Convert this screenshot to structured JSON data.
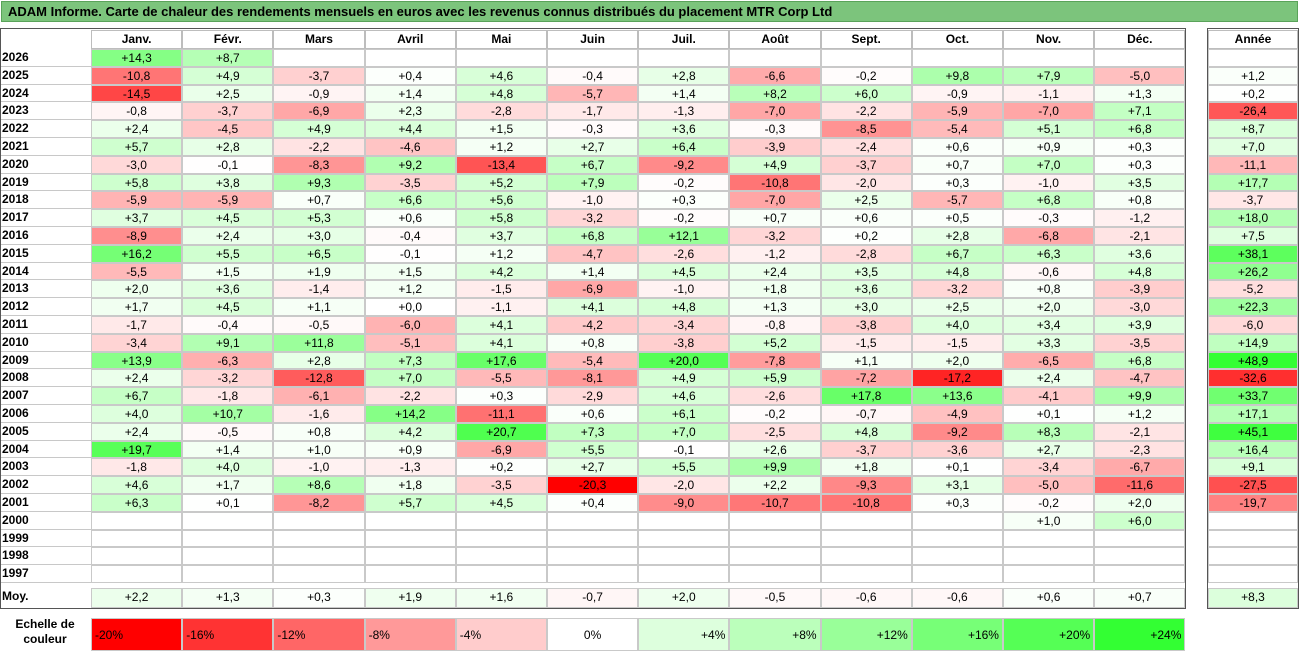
{
  "title": "ADAM Informe. Carte de chaleur des rendements mensuels en euros avec les revenus connus distribués du placement MTR Corp Ltd",
  "labels": {
    "months": [
      "Janv.",
      "Févr.",
      "Mars",
      "Avril",
      "Mai",
      "Juin",
      "Juil.",
      "Août",
      "Sept.",
      "Oct.",
      "Nov.",
      "Déc."
    ],
    "year_col": "Année",
    "avg_row": "Moy.",
    "scale_label": "Echelle de couleur"
  },
  "colors": {
    "title_bg": "#7cc47c",
    "max_red": "#ff0000",
    "max_green": "#33ff33",
    "neutral": "#ffffff"
  },
  "scale": [
    "-20%",
    "-16%",
    "-12%",
    "-8%",
    "-4%",
    "0%",
    "+4%",
    "+8%",
    "+12%",
    "+16%",
    "+20%",
    "+24%"
  ],
  "chart_data": {
    "type": "heatmap",
    "x": [
      "Janv.",
      "Févr.",
      "Mars",
      "Avril",
      "Mai",
      "Juin",
      "Juil.",
      "Août",
      "Sept.",
      "Oct.",
      "Nov.",
      "Déc."
    ],
    "y": [
      "2026",
      "2025",
      "2024",
      "2023",
      "2022",
      "2021",
      "2020",
      "2019",
      "2018",
      "2017",
      "2016",
      "2015",
      "2014",
      "2013",
      "2012",
      "2011",
      "2010",
      "2009",
      "2008",
      "2007",
      "2006",
      "2005",
      "2004",
      "2003",
      "2002",
      "2001",
      "2000",
      "1999",
      "1998",
      "1997"
    ],
    "values": [
      [
        "+14,3",
        "+8,7",
        "",
        "",
        "",
        "",
        "",
        "",
        "",
        "",
        "",
        ""
      ],
      [
        "-10,8",
        "+4,9",
        "-3,7",
        "+0,4",
        "+4,6",
        "-0,4",
        "+2,8",
        "-6,6",
        "-0,2",
        "+9,8",
        "+7,9",
        "-5,0"
      ],
      [
        "-14,5",
        "+2,5",
        "-0,9",
        "+1,4",
        "+4,8",
        "-5,7",
        "+1,4",
        "+8,2",
        "+6,0",
        "-0,9",
        "-1,1",
        "+1,3"
      ],
      [
        "-0,8",
        "-3,7",
        "-6,9",
        "+2,3",
        "-2,8",
        "-1,7",
        "-1,3",
        "-7,0",
        "-2,2",
        "-5,9",
        "-7,0",
        "+7,1"
      ],
      [
        "+2,4",
        "-4,5",
        "+4,9",
        "+4,4",
        "+1,5",
        "-0,3",
        "+3,6",
        "-0,3",
        "-8,5",
        "-5,4",
        "+5,1",
        "+6,8"
      ],
      [
        "+5,7",
        "+2,8",
        "-2,2",
        "-4,6",
        "+1,2",
        "+2,7",
        "+6,4",
        "-3,9",
        "-2,4",
        "+0,6",
        "+0,9",
        "+0,3"
      ],
      [
        "-3,0",
        "-0,1",
        "-8,3",
        "+9,2",
        "-13,4",
        "+6,7",
        "-9,2",
        "+4,9",
        "-3,7",
        "+0,7",
        "+7,0",
        "+0,3"
      ],
      [
        "+5,8",
        "+3,8",
        "+9,3",
        "-3,5",
        "+5,2",
        "+7,9",
        "-0,2",
        "-10,8",
        "-2,0",
        "+0,3",
        "-1,0",
        "+3,5"
      ],
      [
        "-5,9",
        "-5,9",
        "+0,7",
        "+6,6",
        "+5,6",
        "-1,0",
        "+0,3",
        "-7,0",
        "+2,5",
        "-5,7",
        "+6,8",
        "+0,8"
      ],
      [
        "+3,7",
        "+4,5",
        "+5,3",
        "+0,6",
        "+5,8",
        "-3,2",
        "-0,2",
        "+0,7",
        "+0,6",
        "+0,5",
        "-0,3",
        "-1,2"
      ],
      [
        "-8,9",
        "+2,4",
        "+3,0",
        "-0,4",
        "+3,7",
        "+6,8",
        "+12,1",
        "-3,2",
        "+0,2",
        "+2,8",
        "-6,8",
        "-2,1"
      ],
      [
        "+16,2",
        "+5,5",
        "+6,5",
        "-0,1",
        "+1,2",
        "-4,7",
        "-2,6",
        "-1,2",
        "-2,8",
        "+6,7",
        "+6,3",
        "+3,6"
      ],
      [
        "-5,5",
        "+1,5",
        "+1,9",
        "+1,5",
        "+4,2",
        "+1,4",
        "+4,5",
        "+2,4",
        "+3,5",
        "+4,8",
        "-0,6",
        "+4,8"
      ],
      [
        "+2,0",
        "+3,6",
        "-1,4",
        "+1,2",
        "-1,5",
        "-6,9",
        "-1,0",
        "+1,8",
        "+3,6",
        "-3,2",
        "+0,8",
        "-3,9"
      ],
      [
        "+1,7",
        "+4,5",
        "+1,1",
        "+0,0",
        "-1,1",
        "+4,1",
        "+4,8",
        "+1,3",
        "+3,0",
        "+2,5",
        "+2,0",
        "-3,0"
      ],
      [
        "-1,7",
        "-0,4",
        "-0,5",
        "-6,0",
        "+4,1",
        "-4,2",
        "-3,4",
        "-0,8",
        "-3,8",
        "+4,0",
        "+3,4",
        "+3,9"
      ],
      [
        "-3,4",
        "+9,1",
        "+11,8",
        "-5,1",
        "+4,1",
        "+0,8",
        "-3,8",
        "+5,2",
        "-1,5",
        "-1,5",
        "+3,3",
        "-3,5"
      ],
      [
        "+13,9",
        "-6,3",
        "+2,8",
        "+7,3",
        "+17,6",
        "-5,4",
        "+20,0",
        "-7,8",
        "+1,1",
        "+2,0",
        "-6,5",
        "+6,8"
      ],
      [
        "+2,4",
        "-3,2",
        "-12,8",
        "+7,0",
        "-5,5",
        "-8,1",
        "+4,9",
        "+5,9",
        "-7,2",
        "-17,2",
        "+2,4",
        "-4,7"
      ],
      [
        "+6,7",
        "-1,8",
        "-6,1",
        "-2,2",
        "+0,3",
        "-2,9",
        "+4,6",
        "-2,6",
        "+17,8",
        "+13,6",
        "-4,1",
        "+9,9"
      ],
      [
        "+4,0",
        "+10,7",
        "-1,6",
        "+14,2",
        "-11,1",
        "+0,6",
        "+6,1",
        "-0,2",
        "-0,7",
        "-4,9",
        "+0,1",
        "+1,2"
      ],
      [
        "+2,4",
        "-0,5",
        "+0,8",
        "+4,2",
        "+20,7",
        "+7,3",
        "+7,0",
        "-2,5",
        "+4,8",
        "-9,2",
        "+8,3",
        "-2,1"
      ],
      [
        "+19,7",
        "+1,4",
        "+1,0",
        "+0,9",
        "-6,9",
        "+5,5",
        "-0,1",
        "+2,6",
        "-3,7",
        "-3,6",
        "+2,7",
        "-2,3"
      ],
      [
        "-1,8",
        "+4,0",
        "-1,0",
        "-1,3",
        "+0,2",
        "+2,7",
        "+5,5",
        "+9,9",
        "+1,8",
        "+0,1",
        "-3,4",
        "-6,7"
      ],
      [
        "+4,6",
        "+1,7",
        "+8,6",
        "+1,8",
        "-3,5",
        "-20,3",
        "-2,0",
        "+2,2",
        "-9,3",
        "+3,1",
        "-5,0",
        "-11,6"
      ],
      [
        "+6,3",
        "+0,1",
        "-8,2",
        "+5,7",
        "+4,5",
        "+0,4",
        "-9,0",
        "-10,7",
        "-10,8",
        "+0,3",
        "-0,2",
        "+2,0"
      ],
      [
        "",
        "",
        "",
        "",
        "",
        "",
        "",
        "",
        "",
        "",
        "+1,0",
        "+6,0"
      ],
      [
        "",
        "",
        "",
        "",
        "",
        "",
        "",
        "",
        "",
        "",
        "",
        ""
      ],
      [
        "",
        "",
        "",
        "",
        "",
        "",
        "",
        "",
        "",
        "",
        "",
        ""
      ],
      [
        "",
        "",
        "",
        "",
        "",
        "",
        "",
        "",
        "",
        "",
        "",
        ""
      ]
    ],
    "annual": [
      "",
      "+1,2",
      "+0,2",
      "-26,4",
      "+8,7",
      "+7,0",
      "-11,1",
      "+17,7",
      "-3,7",
      "+18,0",
      "+7,5",
      "+38,1",
      "+26,2",
      "-5,2",
      "+22,3",
      "-6,0",
      "+14,9",
      "+48,9",
      "-32,6",
      "+33,7",
      "+17,1",
      "+45,1",
      "+16,4",
      "+9,1",
      "-27,5",
      "-19,7",
      "",
      "",
      "",
      ""
    ],
    "averages": [
      "+2,2",
      "+1,3",
      "+0,3",
      "+1,9",
      "+1,6",
      "-0,7",
      "+2,0",
      "-0,5",
      "-0,6",
      "-0,6",
      "+0,6",
      "+0,7"
    ],
    "annual_average": "+8,3",
    "color_scale_min": -20,
    "color_scale_max": 24
  }
}
